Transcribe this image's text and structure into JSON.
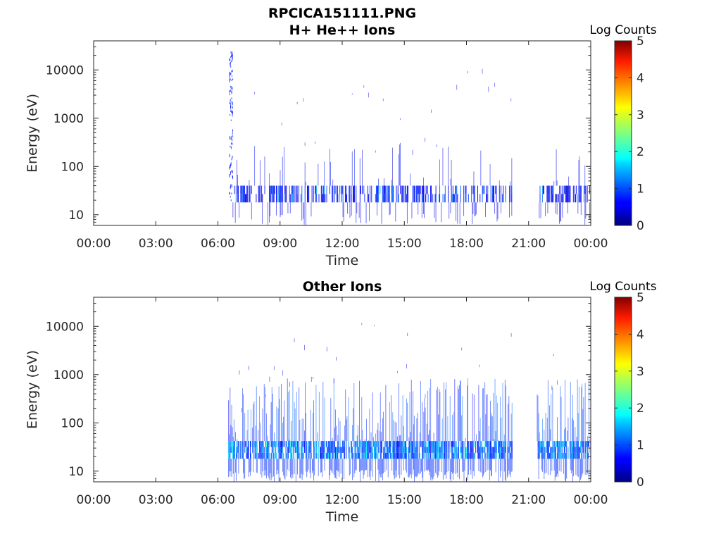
{
  "figure": {
    "title": "RPCICA151111.PNG"
  },
  "colorbar": {
    "label": "Log Counts",
    "ticks": [
      "0",
      "1",
      "2",
      "3",
      "4",
      "5"
    ],
    "range": [
      0,
      5
    ],
    "colormap": "jet"
  },
  "chart_data": [
    {
      "type": "heatmap",
      "title": "H+ He++ Ions",
      "xlabel": "Time",
      "ylabel": "Energy (eV)",
      "yscale": "log",
      "xlim": [
        "00:00",
        "24:00"
      ],
      "ylim": [
        6,
        40000
      ],
      "xticklabels": [
        "00:00",
        "03:00",
        "06:00",
        "09:00",
        "12:00",
        "15:00",
        "18:00",
        "21:00",
        "00:00"
      ],
      "yticklabels": [
        "10",
        "100",
        "1000",
        "10000"
      ],
      "value_label": "Log Counts",
      "value_range": [
        0,
        5
      ],
      "data_intervals_utc_hours": [
        [
          6.6,
          20.2
        ],
        [
          21.5,
          24.0
        ]
      ],
      "core_band_eV": [
        18,
        40
      ],
      "typical_log_counts": 0.9,
      "peak_log_counts": 1.3,
      "notes_values": {
        "burst_hour": 6.6,
        "burst_energy_eV": [
          20,
          25000
        ]
      }
    },
    {
      "type": "heatmap",
      "title": "Other Ions",
      "xlabel": "Time",
      "ylabel": "Energy (eV)",
      "yscale": "log",
      "xlim": [
        "00:00",
        "24:00"
      ],
      "ylim": [
        6,
        40000
      ],
      "xticklabels": [
        "00:00",
        "03:00",
        "06:00",
        "09:00",
        "12:00",
        "15:00",
        "18:00",
        "21:00",
        "00:00"
      ],
      "yticklabels": [
        "10",
        "100",
        "1000",
        "10000"
      ],
      "value_label": "Log Counts",
      "value_range": [
        0,
        5
      ],
      "data_intervals_utc_hours": [
        [
          6.5,
          20.2
        ],
        [
          21.4,
          24.0
        ]
      ],
      "core_band_eV": [
        18,
        42
      ],
      "typical_log_counts": 1.4,
      "peak_log_counts": 1.9
    }
  ]
}
